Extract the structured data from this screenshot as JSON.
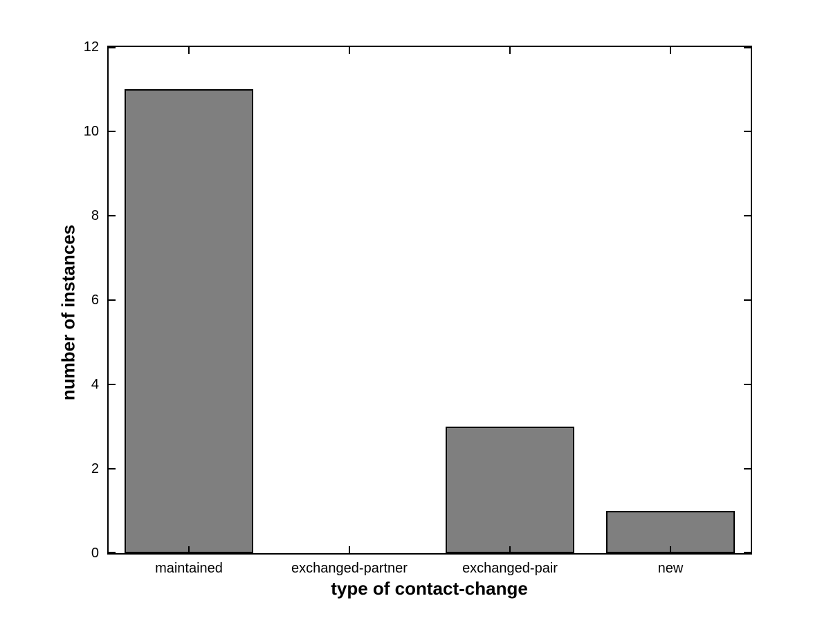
{
  "chart_data": {
    "type": "bar",
    "title": "",
    "xlabel": "type of contact-change",
    "ylabel": "number of instances",
    "categories": [
      "maintained",
      "exchanged-partner",
      "exchanged-pair",
      "new"
    ],
    "values": [
      11,
      0,
      3,
      1
    ],
    "ylim": [
      0,
      12
    ],
    "yticks": [
      0,
      2,
      4,
      6,
      8,
      10,
      12
    ],
    "ytick_labels": [
      "0",
      "2",
      "4",
      "6",
      "8",
      "10",
      "12"
    ],
    "bar_width_fraction": 0.8,
    "grid": false,
    "legend": null,
    "colors": {
      "bar_fill": "#7f7f7f",
      "bar_edge": "#000000",
      "axis": "#000000",
      "background": "#ffffff",
      "text": "#000000"
    }
  }
}
